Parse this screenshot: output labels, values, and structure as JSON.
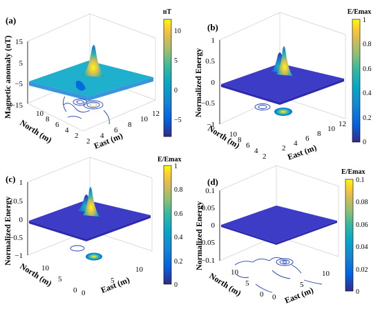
{
  "chart_data": [
    {
      "type": "surface3d",
      "panel_label": "(a)",
      "zlabel": "Magnetic anomaly (nT)",
      "xlabel": "East (m)",
      "ylabel": "North (m)",
      "z_ticks": [
        "15",
        "5",
        "−5",
        "−15"
      ],
      "x_ticks": [
        "2",
        "4",
        "6",
        "8",
        "10",
        "12"
      ],
      "y_ticks": [
        "10",
        "8",
        "6",
        "4",
        "2"
      ],
      "colorbar": {
        "title": "nT",
        "ticks": [
          "10",
          "5",
          "0",
          "−5"
        ],
        "range": [
          -8,
          12
        ]
      },
      "colormap": "parula",
      "peaks": [
        {
          "x": 7.5,
          "y": 6.5,
          "z": 12
        },
        {
          "x": 6.5,
          "y": 5.5,
          "z": -8
        }
      ]
    },
    {
      "type": "surface3d",
      "panel_label": "(b)",
      "zlabel": "Normalized Energy",
      "xlabel": "East (m)",
      "ylabel": "North (m)",
      "z_ticks": [
        "1",
        "0.5",
        "0",
        "−0.5",
        "−1"
      ],
      "x_ticks": [
        "2",
        "4",
        "6",
        "8",
        "10",
        "12"
      ],
      "y_ticks": [
        "10",
        "8",
        "6",
        "4",
        "2"
      ],
      "colorbar": {
        "title": "E/Emax",
        "ticks": [
          "1",
          "0.8",
          "0.6",
          "0.4",
          "0.2",
          "0"
        ],
        "range": [
          0,
          1
        ]
      },
      "colormap": "parula",
      "peaks": [
        {
          "x": 7.5,
          "y": 6.5,
          "z": 1.0
        },
        {
          "x": 6.2,
          "y": 7.0,
          "z": 0.6
        }
      ]
    },
    {
      "type": "surface3d",
      "panel_label": "(c)",
      "zlabel": "Normalized Energy",
      "xlabel": "East (m)",
      "ylabel": "North (m)",
      "z_ticks": [
        "1",
        "0.5",
        "0",
        "−0.5",
        "−1"
      ],
      "x_ticks": [
        "0",
        "5",
        "10"
      ],
      "y_ticks": [
        "10",
        "5",
        "0"
      ],
      "colorbar": {
        "title": "E/Emax",
        "ticks": [
          "1",
          "0.8",
          "0.6",
          "0.4",
          "0.2",
          "0"
        ],
        "range": [
          0,
          1
        ]
      },
      "colormap": "parula",
      "peaks": [
        {
          "x": 7.5,
          "y": 6.5,
          "z": 0.95
        },
        {
          "x": 6.2,
          "y": 7.0,
          "z": 0.6
        }
      ]
    },
    {
      "type": "surface3d",
      "panel_label": "(d)",
      "zlabel": "Normalized Energy",
      "xlabel": "East (m)",
      "ylabel": "North (m)",
      "z_ticks": [
        "0.1",
        "0.05",
        "0",
        "−0.05",
        "−0.1"
      ],
      "x_ticks": [
        "0",
        "5",
        "10"
      ],
      "y_ticks": [
        "10",
        "5",
        "0"
      ],
      "colorbar": {
        "title": "E/Emax",
        "ticks": [
          "0.1",
          "0.08",
          "0.06",
          "0.04",
          "0.02",
          "0"
        ],
        "range": [
          0,
          0.1
        ]
      },
      "colormap": "parula",
      "peaks": [
        {
          "x": 6.5,
          "y": 6.0,
          "z": 0.005
        }
      ]
    }
  ],
  "colors": {
    "parula": [
      "#352a87",
      "#0363e1",
      "#1485d4",
      "#06a7c6",
      "#38b99e",
      "#92bf73",
      "#d9ba56",
      "#fcce2e",
      "#f9fb0e"
    ],
    "contour": "#1d3db8"
  }
}
